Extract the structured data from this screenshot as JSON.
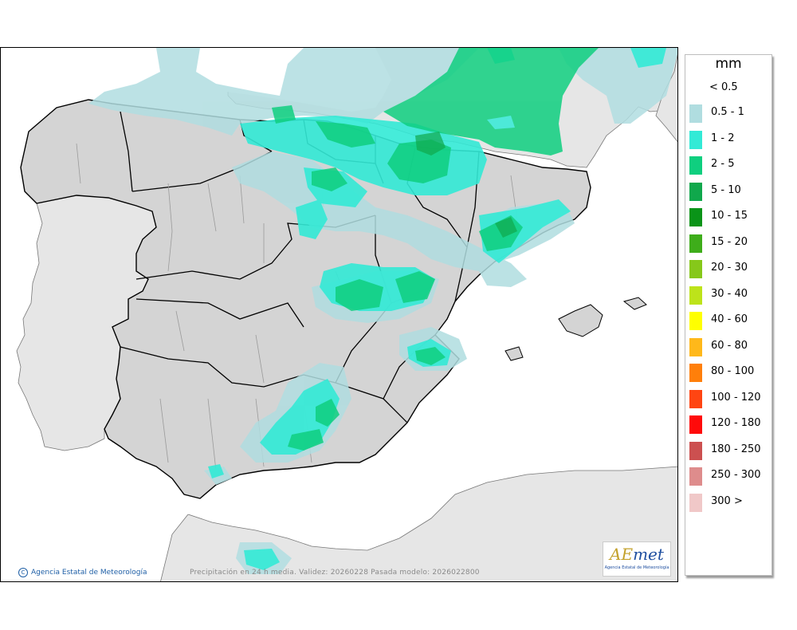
{
  "map": {
    "caption": "Precipitación en 24 h media. Validez: 20260228 Pasada modelo: 2026022800",
    "credit": "Agencia Estatal de Meteorología",
    "colors": {
      "sea": "#ffffff",
      "land_spain": "#d9d9d9",
      "land_other": "#e6e6e6",
      "border": "#000000",
      "province": "#9a9a9a"
    }
  },
  "logo": {
    "brand": "AEmet",
    "subtitle": "Agencia Estatal de Meteorología"
  },
  "legend": {
    "unit": "mm",
    "lowest_label": "< 0.5",
    "items": [
      {
        "label": "0.5 - 1",
        "color": "#b0dde0"
      },
      {
        "label": "1 - 2",
        "color": "#33ead6"
      },
      {
        "label": "2 - 5",
        "color": "#0fcf7f"
      },
      {
        "label": "5 - 10",
        "color": "#10a84c"
      },
      {
        "label": "10 - 15",
        "color": "#0a9418"
      },
      {
        "label": "15 - 20",
        "color": "#3ead1a"
      },
      {
        "label": "20 - 30",
        "color": "#86c81a"
      },
      {
        "label": "30 - 40",
        "color": "#bde31a"
      },
      {
        "label": "40 - 60",
        "color": "#ffff00"
      },
      {
        "label": "60 - 80",
        "color": "#ffb81a"
      },
      {
        "label": "80 - 100",
        "color": "#ff7f0a"
      },
      {
        "label": "100 - 120",
        "color": "#ff4512"
      },
      {
        "label": "120 - 180",
        "color": "#ff0a0a"
      },
      {
        "label": "180 - 250",
        "color": "#cc5050"
      },
      {
        "label": "250 - 300",
        "color": "#de8c8c"
      },
      {
        "label": "300 >",
        "color": "#f0c8c8"
      }
    ]
  }
}
